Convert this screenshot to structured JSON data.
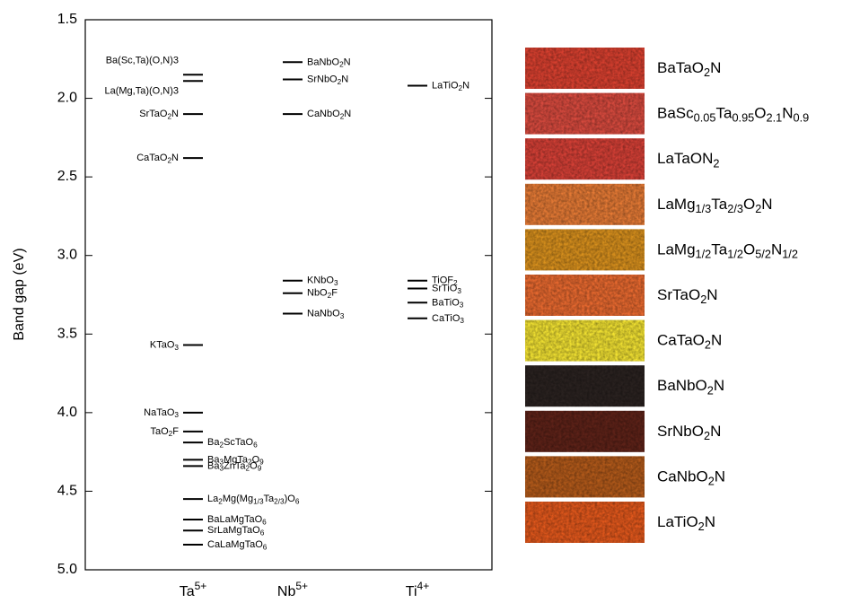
{
  "chart_data": {
    "type": "level",
    "ylabel": "Band gap (eV)",
    "ylim": [
      1.5,
      5.0
    ],
    "y_inverted": true,
    "yticks": [
      1.5,
      {
        "value": 2,
        "label": "2.0"
      },
      2.5,
      {
        "value": 3,
        "label": "3.0"
      },
      3.5,
      {
        "value": 4,
        "label": "4.0"
      },
      4.5,
      {
        "value": 5,
        "label": "5.0"
      }
    ],
    "color": "#000000",
    "categories": [
      "Ta5+",
      "Nb5+",
      "Ti4+"
    ],
    "groups": [
      {
        "labels": [
          "Ba(Sc,Ta)(O,N)3",
          "La(Mg,Ta)(O,N)3",
          "SrTaO2N",
          "CaTaO2N",
          "KTaO3",
          "NaTaO3",
          "TaO2F",
          "Ba2ScTaO6",
          "Ba3MgTa2O9",
          "Ba3ZnTa2O9",
          "La2Mg(Mg1/3Ta2/3)O6",
          "BaLaMgTaO6",
          "SrLaMgTaO6",
          "CaLaMgTaO6"
        ],
        "values": [
          1.85,
          1.89,
          2.1,
          2.38,
          3.57,
          4.0,
          4.12,
          4.19,
          4.3,
          4.34,
          4.55,
          4.68,
          4.75,
          4.84
        ]
      },
      {
        "labels": [
          "BaNbO2N",
          "SrNbO2N",
          "CaNbO2N",
          "KNbO3",
          "NbO2F",
          "NaNbO3"
        ],
        "values": [
          1.77,
          1.88,
          2.1,
          3.16,
          3.24,
          3.37
        ]
      },
      {
        "labels": [
          "LaTiO2N",
          "TiOF2",
          "SrTiO3",
          "BaTiO3",
          "CaTiO3"
        ],
        "values": [
          1.92,
          3.16,
          3.21,
          3.3,
          3.4
        ]
      }
    ]
  },
  "swatches": [
    {
      "label": "BaTaO2N",
      "color": "#d9402f"
    },
    {
      "label": "BaSc0.05Ta0.95O2.1N0.9",
      "color": "#d84a3e"
    },
    {
      "label": "LaTaON2",
      "color": "#d64036"
    },
    {
      "label": "LaMg1/3Ta2/3O2N",
      "color": "#e57a35"
    },
    {
      "label": "LaMg1/2Ta1/2O5/2N1/2",
      "color": "#d8901d"
    },
    {
      "label": "SrTaO2N",
      "color": "#e8692f"
    },
    {
      "label": "CaTaO2N",
      "color": "#f2e232"
    },
    {
      "label": "BaNbO2N",
      "color": "#2a2220"
    },
    {
      "label": "SrNbO2N",
      "color": "#5e2218"
    },
    {
      "label": "CaNbO2N",
      "color": "#b35a1a"
    },
    {
      "label": "LaTiO2N",
      "color": "#e3581c"
    }
  ]
}
